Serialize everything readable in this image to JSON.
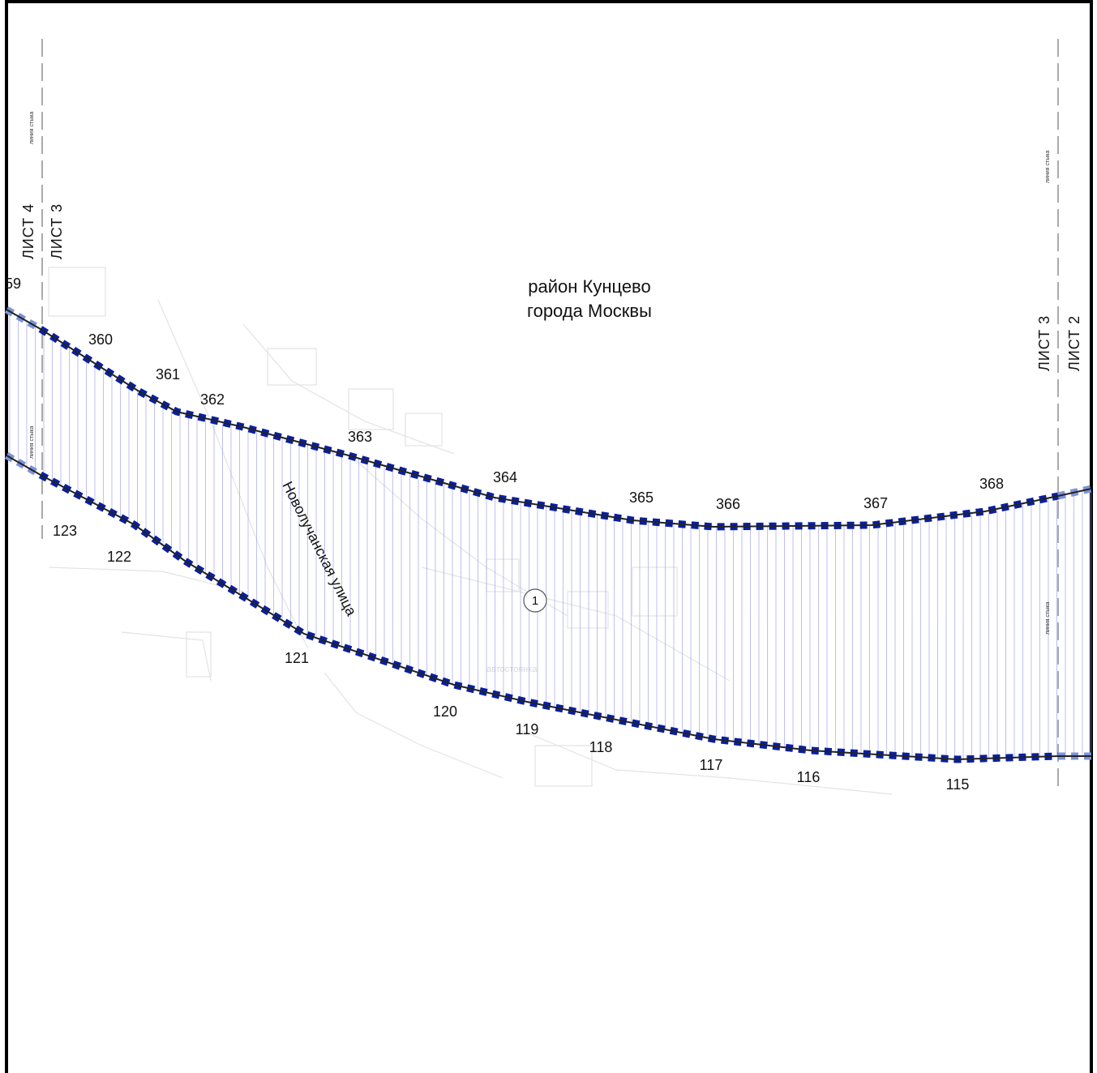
{
  "district_label": {
    "line1": "район Кунцево",
    "line2": "города Москвы"
  },
  "street_label": "Новолучанская улица",
  "faint_label": "автостоянка",
  "cut_label": "59",
  "sheet_labels": {
    "left_outer": "ЛИСТ 4",
    "left_inner": "ЛИСТ 3",
    "right_inner": "ЛИСТ 3",
    "right_outer": "ЛИСТ 2"
  },
  "joint_line_label": "линия стыка",
  "zone_number": "1",
  "boundary_colors": {
    "dash": "#0a1f9c",
    "hatch": "#9a9af0"
  },
  "top_points": [
    {
      "id": "360",
      "label": "360"
    },
    {
      "id": "361",
      "label": "361"
    },
    {
      "id": "362",
      "label": "362"
    },
    {
      "id": "363",
      "label": "363"
    },
    {
      "id": "364",
      "label": "364"
    },
    {
      "id": "365",
      "label": "365"
    },
    {
      "id": "366",
      "label": "366"
    },
    {
      "id": "367",
      "label": "367"
    },
    {
      "id": "368",
      "label": "368"
    }
  ],
  "bottom_points": [
    {
      "id": "123",
      "label": "123"
    },
    {
      "id": "122",
      "label": "122"
    },
    {
      "id": "121",
      "label": "121"
    },
    {
      "id": "120",
      "label": "120"
    },
    {
      "id": "119",
      "label": "119"
    },
    {
      "id": "118",
      "label": "118"
    },
    {
      "id": "117",
      "label": "117"
    },
    {
      "id": "116",
      "label": "116"
    },
    {
      "id": "115",
      "label": "115"
    }
  ]
}
